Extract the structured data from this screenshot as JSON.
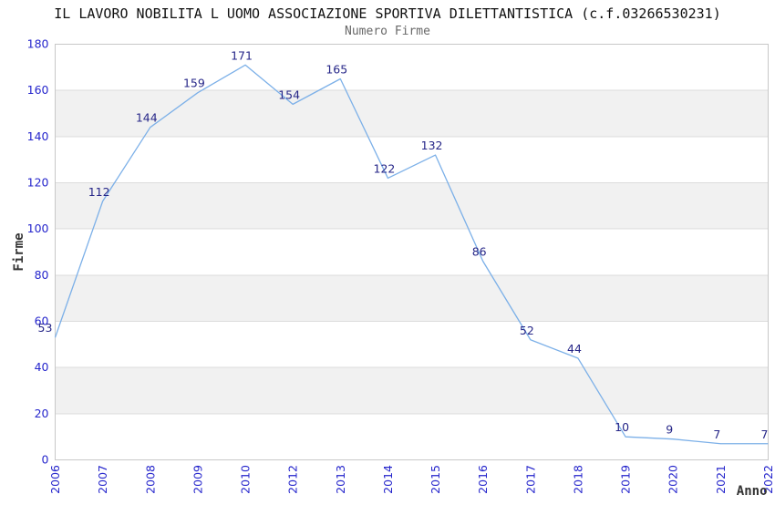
{
  "header": {
    "title": "IL LAVORO NOBILITA L UOMO ASSOCIAZIONE SPORTIVA DILETTANTISTICA (c.f.03266530231)",
    "subtitle": "Numero Firme"
  },
  "chart_data": {
    "type": "line",
    "title": "IL LAVORO NOBILITA L UOMO ASSOCIAZIONE SPORTIVA DILETTANTISTICA (c.f.03266530231)",
    "subtitle": "Numero Firme",
    "xlabel": "Anno",
    "ylabel": "Firme",
    "categories": [
      "2006",
      "2007",
      "2008",
      "2009",
      "2010",
      "2012",
      "2013",
      "2014",
      "2015",
      "2016",
      "2017",
      "2018",
      "2019",
      "2020",
      "2021",
      "2022"
    ],
    "values": [
      53,
      112,
      144,
      159,
      171,
      154,
      165,
      122,
      132,
      86,
      52,
      44,
      10,
      9,
      7,
      7
    ],
    "ylim": [
      0,
      180
    ],
    "ytick_step": 20,
    "grid": "alternating-horizontal-bands",
    "legend": "none",
    "markers": "none",
    "data_labels": "above-points",
    "colors": {
      "line": "#7cb0e8",
      "data_label": "#262688",
      "tick_label": "#2626cc",
      "axis_title": "#333333",
      "band_fill": "#f1f1f1",
      "band_border": "#dcdcdc",
      "plot_border": "#c8c8c8",
      "title": "#111111",
      "subtitle": "#686868"
    }
  }
}
